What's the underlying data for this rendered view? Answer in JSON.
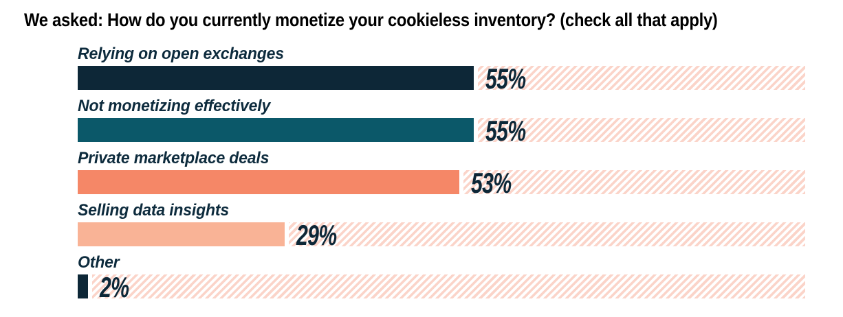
{
  "title": "We asked: How do you currently monetize your cookieless inventory? (check all that apply)",
  "colors": {
    "navy": "#0d2737",
    "teal": "#0b5869",
    "coral": "#f58767",
    "peach": "#f9b396",
    "stripe": "#fbd4c9",
    "label_text": "#0d2b3d",
    "title_text": "#000000"
  },
  "chart_data": {
    "type": "bar",
    "orientation": "horizontal",
    "title": "We asked: How do you currently monetize your cookieless inventory? (check all that apply)",
    "categories": [
      "Relying on open exchanges",
      "Not monetizing effectively",
      "Private marketplace deals",
      "Selling data insights",
      "Other"
    ],
    "values": [
      55,
      55,
      53,
      29,
      2
    ],
    "value_labels": [
      "55%",
      "55%",
      "53%",
      "29%",
      "2%"
    ],
    "bar_colors": [
      "#0d2737",
      "#0b5869",
      "#f58767",
      "#f9b396",
      "#0d2737"
    ],
    "xlim": [
      0,
      100
    ],
    "xlabel": "",
    "ylabel": "",
    "grid": false,
    "legend": false,
    "track_style": "full-width diagonal pink stripes behind each bar, value label printed on stripes just after bar end"
  }
}
